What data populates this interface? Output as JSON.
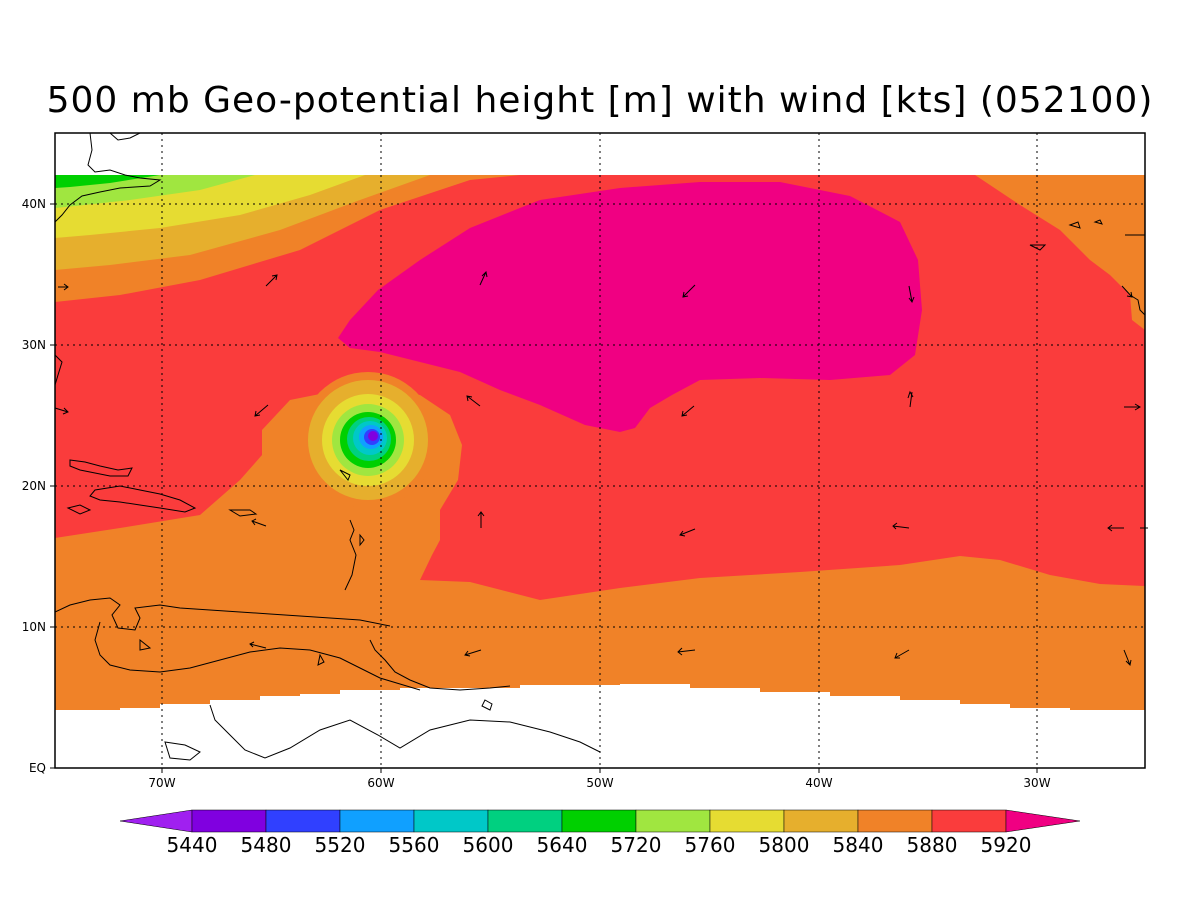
{
  "title": "500 mb Geo-potential height [m] with wind [kts] (052100)",
  "lat_labels": [
    "EQ",
    "10N",
    "20N",
    "30N",
    "40N"
  ],
  "lon_labels": [
    "70W",
    "60W",
    "50W",
    "40W",
    "30W"
  ],
  "colorbar": {
    "labels": [
      "5440",
      "5480",
      "5520",
      "5560",
      "5600",
      "5640",
      "5720",
      "5760",
      "5800",
      "5840",
      "5880",
      "5920"
    ],
    "colors": [
      "#a020f0",
      "#8000e0",
      "#3040ff",
      "#10a0ff",
      "#00c8c8",
      "#00d080",
      "#00d000",
      "#a0e640",
      "#e6dc32",
      "#e6af2d",
      "#f08228",
      "#fa3c3c",
      "#f00082"
    ]
  },
  "field_colors": {
    "c5920_plus": "#f00082",
    "c5880": "#fa3c3c",
    "c5840": "#f08228",
    "c5800": "#e6af2d",
    "c5760": "#e6dc32",
    "c5720": "#a0e640",
    "c5640": "#00d000",
    "c5600": "#00d080",
    "c5560": "#00c8c8",
    "c5520": "#10a0ff",
    "c5480": "#3040ff",
    "c5440": "#8000e0"
  }
}
